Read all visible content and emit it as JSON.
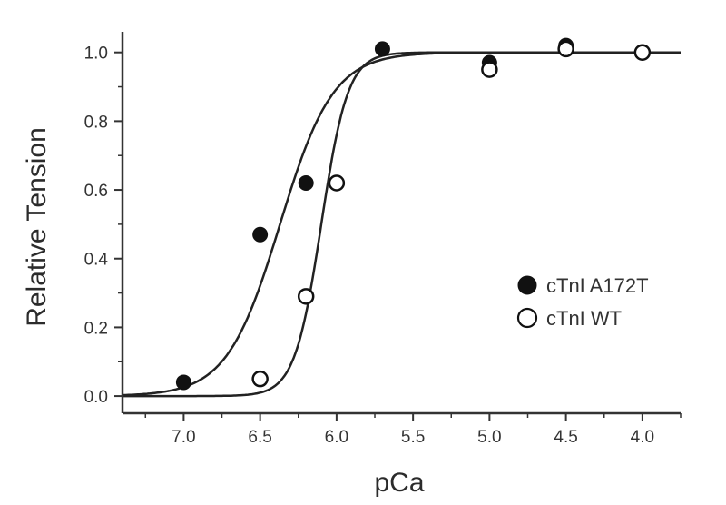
{
  "chart_data": {
    "type": "scatter",
    "title": "",
    "xlabel": "pCa",
    "ylabel": "Relative Tension",
    "xlim": [
      7.4,
      3.75
    ],
    "ylim": [
      -0.05,
      1.06
    ],
    "x_reversed": true,
    "x_ticks": [
      7.0,
      6.5,
      6.0,
      5.5,
      5.0,
      4.5,
      4.0
    ],
    "x_tick_labels": [
      "7.0",
      "6.5",
      "6.0",
      "5.5",
      "5.0",
      "4.5",
      "4.0"
    ],
    "y_ticks": [
      0.0,
      0.2,
      0.4,
      0.6,
      0.8,
      1.0
    ],
    "y_tick_labels": [
      "0.0",
      "0.2",
      "0.4",
      "0.6",
      "0.8",
      "1.0"
    ],
    "grid": false,
    "legend_position": "right",
    "series": [
      {
        "name": "cTnI A172T",
        "marker": "filled-circle",
        "color": "#111111",
        "points": [
          {
            "x": 7.0,
            "y": 0.04
          },
          {
            "x": 6.5,
            "y": 0.47
          },
          {
            "x": 6.2,
            "y": 0.62
          },
          {
            "x": 5.7,
            "y": 1.01
          },
          {
            "x": 5.0,
            "y": 0.97
          },
          {
            "x": 4.5,
            "y": 1.02
          },
          {
            "x": 4.0,
            "y": 1.0
          }
        ],
        "fit": {
          "model": "hill",
          "pCa50": 6.37,
          "n_hill": 2.5
        }
      },
      {
        "name": "cTnI WT",
        "marker": "open-circle",
        "color": "#111111",
        "points": [
          {
            "x": 6.5,
            "y": 0.05
          },
          {
            "x": 6.2,
            "y": 0.29
          },
          {
            "x": 6.0,
            "y": 0.62
          },
          {
            "x": 5.0,
            "y": 0.95
          },
          {
            "x": 4.5,
            "y": 1.01
          },
          {
            "x": 4.0,
            "y": 1.0
          }
        ],
        "fit": {
          "model": "hill",
          "pCa50": 6.1,
          "n_hill": 5.0
        }
      }
    ]
  }
}
